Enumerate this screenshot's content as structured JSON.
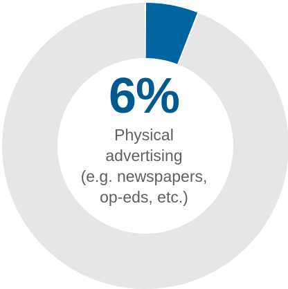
{
  "chart_data": {
    "type": "pie",
    "style": "donut",
    "slices": [
      {
        "label": "Physical advertising (e.g. newspapers, op-eds, etc.)",
        "value": 6
      },
      {
        "label": "",
        "value": 94
      }
    ],
    "center_value": "6%",
    "center_lines": [
      "Physical",
      "advertising",
      "(e.g. newspapers,",
      "op-eds, etc.)"
    ],
    "colors": {
      "highlight": "#0066A1",
      "remainder": "#E6E6E6",
      "value_text": "#005A8E",
      "label_text": "#606060"
    }
  }
}
